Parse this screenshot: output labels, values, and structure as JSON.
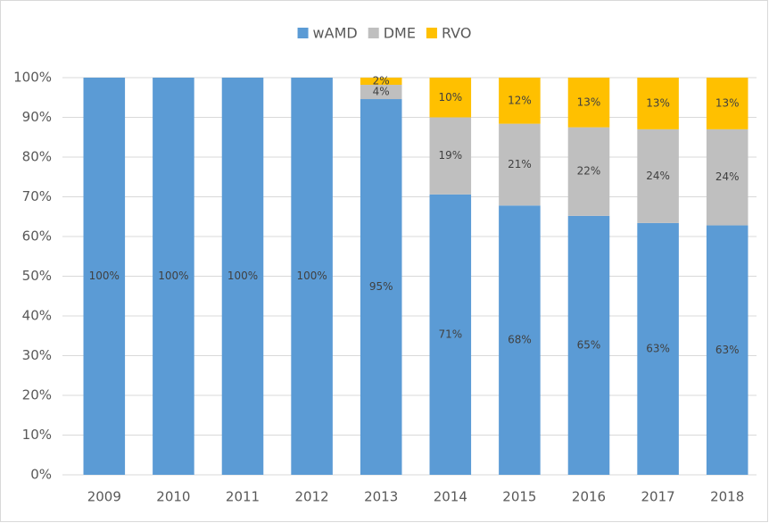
{
  "chart_data": {
    "type": "stacked_bar_100",
    "categories": [
      "2009",
      "2010",
      "2011",
      "2012",
      "2013",
      "2014",
      "2015",
      "2016",
      "2017",
      "2018"
    ],
    "series": [
      {
        "name": "wAMD",
        "color": "#5b9bd5",
        "values": [
          100,
          100,
          100,
          100,
          94.6,
          70.6,
          67.8,
          65.2,
          63.4,
          62.8
        ],
        "value_labels": [
          "100%",
          "100%",
          "100%",
          "100%",
          "95%",
          "71%",
          "68%",
          "65%",
          "63%",
          "63%"
        ]
      },
      {
        "name": "DME",
        "color": "#bfbfbf",
        "values": [
          null,
          null,
          null,
          null,
          3.6,
          19.4,
          20.6,
          22.3,
          23.6,
          24.2
        ],
        "value_labels": [
          null,
          null,
          null,
          null,
          "4%",
          "19%",
          "21%",
          "22%",
          "24%",
          "24%"
        ]
      },
      {
        "name": "RVO",
        "color": "#ffc000",
        "values": [
          null,
          null,
          null,
          null,
          1.8,
          10.0,
          11.6,
          12.5,
          13.0,
          13.0
        ],
        "value_labels": [
          null,
          null,
          null,
          null,
          "2%",
          "10%",
          "12%",
          "13%",
          "13%",
          "13%"
        ]
      }
    ],
    "ylim": [
      0,
      100
    ],
    "yticks": [
      {
        "value": 0,
        "label": "0%"
      },
      {
        "value": 10,
        "label": "10%"
      },
      {
        "value": 20,
        "label": "20%"
      },
      {
        "value": 30,
        "label": "30%"
      },
      {
        "value": 40,
        "label": "40%"
      },
      {
        "value": 50,
        "label": "50%"
      },
      {
        "value": 60,
        "label": "60%"
      },
      {
        "value": 70,
        "label": "70%"
      },
      {
        "value": 80,
        "label": "80%"
      },
      {
        "value": 90,
        "label": "90%"
      },
      {
        "value": 100,
        "label": "100%"
      }
    ],
    "grid": true,
    "legend": "top"
  }
}
